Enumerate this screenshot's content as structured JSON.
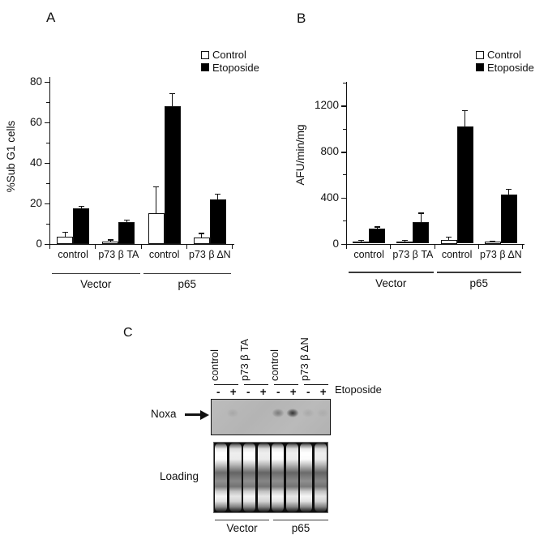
{
  "figure": {
    "panels": {
      "a": "A",
      "b": "B",
      "c": "C"
    }
  },
  "chart_data": [
    {
      "id": "A",
      "type": "bar",
      "title": "",
      "ylabel": "%Sub G1 cells",
      "xlabel": "",
      "ylim": [
        0,
        82
      ],
      "yticks_major": [
        0,
        20,
        40,
        60,
        80
      ],
      "yticks_minor": [
        10,
        30,
        50,
        70
      ],
      "grid": false,
      "legend_position": "top-right",
      "categories": [
        "control",
        "p73 β TA",
        "control",
        "p73 β ΔN"
      ],
      "groups": [
        {
          "label": "Vector",
          "span": [
            0,
            1
          ]
        },
        {
          "label": "p65",
          "span": [
            2,
            3
          ]
        }
      ],
      "series": [
        {
          "name": "Control",
          "fill": "#ffffff",
          "values": [
            3.5,
            1.2,
            15,
            3
          ],
          "errors_up": [
            2,
            0.6,
            13,
            2
          ]
        },
        {
          "name": "Etoposide",
          "fill": "#000000",
          "values": [
            17.5,
            10.5,
            68,
            22
          ],
          "errors_up": [
            1,
            1.2,
            6,
            2.5
          ]
        }
      ]
    },
    {
      "id": "B",
      "type": "bar",
      "title": "",
      "ylabel": "AFU/min/mg",
      "xlabel": "",
      "ylim": [
        0,
        1400
      ],
      "yticks_major": [
        0,
        400,
        800,
        1200
      ],
      "yticks_minor": [
        200,
        600,
        1000,
        1400
      ],
      "grid": false,
      "legend_position": "top-right",
      "categories": [
        "control",
        "p73 β TA",
        "control",
        "p73 β ΔN"
      ],
      "groups": [
        {
          "label": "Vector",
          "span": [
            0,
            1
          ]
        },
        {
          "label": "p65",
          "span": [
            2,
            3
          ]
        }
      ],
      "series": [
        {
          "name": "Control",
          "fill": "#ffffff",
          "values": [
            20,
            20,
            30,
            15
          ],
          "errors_up": [
            10,
            10,
            25,
            8
          ]
        },
        {
          "name": "Etoposide",
          "fill": "#000000",
          "values": [
            130,
            185,
            1020,
            430
          ],
          "errors_up": [
            15,
            80,
            140,
            45
          ]
        }
      ]
    }
  ],
  "panel_c": {
    "lane_labels": [
      "control",
      "p73 β TA",
      "control",
      "p73 β ΔN"
    ],
    "treatments": [
      "-",
      "+",
      "-",
      "+",
      "-",
      "+",
      "-",
      "+"
    ],
    "treatment_axis_label": "Etoposide",
    "blot_label": "Noxa",
    "loading_label": "Loading",
    "group_labels": [
      "Vector",
      "p65"
    ],
    "num_lanes": 8,
    "noxa_bands": [
      {
        "lane": 2,
        "intensity": 0.1
      },
      {
        "lane": 5,
        "intensity": 0.38
      },
      {
        "lane": 6,
        "intensity": 0.85
      },
      {
        "lane": 7,
        "intensity": 0.1
      },
      {
        "lane": 8,
        "intensity": 0.07
      }
    ]
  }
}
